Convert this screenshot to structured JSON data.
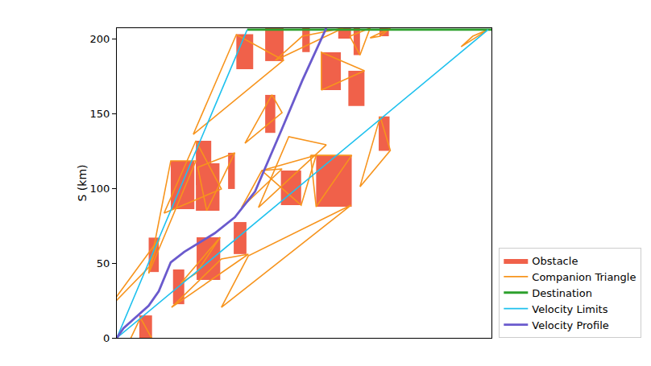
{
  "chart_data": {
    "type": "line",
    "y_label": "S (km)",
    "xlim": [
      0,
      100
    ],
    "ylim": [
      0,
      207
    ],
    "yticks": [
      0,
      50,
      100,
      150,
      200
    ],
    "tick_labels": "y",
    "grid": false,
    "legend": "lower right",
    "series": [
      {
        "name": "Obstacle",
        "type": "rect",
        "color": "#f0614a",
        "rects": [
          [
            6.0,
            9.4,
            -1,
            15
          ],
          [
            8.5,
            11.2,
            44,
            67
          ],
          [
            15.0,
            18.0,
            22.5,
            45.7
          ],
          [
            21.3,
            27.6,
            38.7,
            67.2
          ],
          [
            31.2,
            34.6,
            56,
            77.4
          ],
          [
            14.4,
            20.7,
            86,
            118.3
          ],
          [
            21.1,
            25.2,
            102,
            131.7
          ],
          [
            21.1,
            27.4,
            85,
            116.7
          ],
          [
            29.7,
            31.5,
            99.5,
            123.7
          ],
          [
            31.9,
            36.4,
            179.6,
            203
          ],
          [
            39.6,
            42.3,
            137,
            162.4
          ],
          [
            39.6,
            44.5,
            185,
            207
          ],
          [
            49.5,
            51.5,
            191,
            207
          ],
          [
            43.8,
            49.2,
            88.7,
            111.8
          ],
          [
            53.2,
            62.7,
            87.6,
            122
          ],
          [
            54.6,
            59.8,
            165.6,
            190.9
          ],
          [
            61.8,
            66.1,
            155,
            178.5
          ],
          [
            59.1,
            62.5,
            200,
            207
          ],
          [
            63.2,
            64.9,
            189,
            207
          ],
          [
            70.1,
            72.6,
            201.6,
            207
          ],
          [
            69.9,
            72.8,
            125,
            148
          ]
        ]
      },
      {
        "name": "Companion Triangle",
        "type": "triangle",
        "color": "#f7941d",
        "triangles": [
          [
            [
              0.5,
              -17.2
            ],
            [
              6.3,
              13.4
            ],
            [
              9.5,
              -1.1
            ]
          ],
          [
            [
              -3.1,
              17.2
            ],
            [
              11.4,
              66.7
            ],
            [
              9.0,
              48.4
            ]
          ],
          [
            [
              8.5,
              43
            ],
            [
              14.4,
              118.3
            ],
            [
              21.1,
              118.3
            ]
          ],
          [
            [
              12.6,
              83.3
            ],
            [
              21.1,
              131.7
            ],
            [
              27.9,
              99.5
            ]
          ],
          [
            [
              14.6,
              20.4
            ],
            [
              27.9,
              52.7
            ],
            [
              35.1,
              55.9
            ]
          ],
          [
            [
              27.9,
              20.4
            ],
            [
              35.1,
              54.8
            ],
            [
              62.5,
              88.7
            ]
          ],
          [
            [
              17.1,
              36.6
            ],
            [
              27.6,
              67.2
            ],
            [
              21.1,
              43
            ]
          ],
          [
            [
              20.4,
              136
            ],
            [
              31.9,
              202.7
            ],
            [
              44.5,
              185.5
            ]
          ],
          [
            [
              21.6,
              114
            ],
            [
              31.5,
              123.7
            ],
            [
              24,
              85
            ]
          ],
          [
            [
              38.7,
              111.8
            ],
            [
              53.2,
              122
            ],
            [
              49.2,
              88.7
            ]
          ],
          [
            [
              33.3,
              87.1
            ],
            [
              44.1,
              112.9
            ],
            [
              38.7,
              111.8
            ]
          ],
          [
            [
              37.8,
              87.1
            ],
            [
              55.9,
              129
            ],
            [
              45.9,
              134.4
            ]
          ],
          [
            [
              51.7,
              122
            ],
            [
              62.7,
              122
            ],
            [
              53.2,
              87.6
            ]
          ],
          [
            [
              64.9,
              101
            ],
            [
              70.3,
              147.8
            ],
            [
              73,
              125.3
            ]
          ],
          [
            [
              42.3,
              185.5
            ],
            [
              49.5,
              201.6
            ],
            [
              60.4,
              207
            ]
          ],
          [
            [
              54.6,
              165.6
            ],
            [
              66.1,
              178.5
            ],
            [
              54.6,
              190.9
            ]
          ],
          [
            [
              62.2,
              201.6
            ],
            [
              67.6,
              207
            ],
            [
              64.9,
              189
            ]
          ],
          [
            [
              91.9,
              194.6
            ],
            [
              99.1,
              206
            ],
            [
              95,
              201.6
            ]
          ],
          [
            [
              67.6,
              200.5
            ],
            [
              73,
              207
            ],
            [
              70.3,
              201.6
            ]
          ],
          [
            [
              34.2,
              130.1
            ],
            [
              41.4,
              162.4
            ],
            [
              44.1,
              150.5
            ]
          ]
        ]
      },
      {
        "name": "Destination",
        "type": "line",
        "color": "#2ca02c",
        "x": [
          34.8,
          100
        ],
        "values": [
          206,
          206
        ]
      },
      {
        "name": "Velocity Limits",
        "type": "line",
        "color": "#1fc1ee",
        "x": [
          34.8,
          0,
          99.1
        ],
        "values": [
          206,
          0,
          206
        ]
      },
      {
        "name": "Velocity Profile",
        "type": "line",
        "color": "#6a5acd",
        "x": [
          0,
          1.8,
          5.4,
          8.5,
          11.2,
          14.4,
          18.0,
          26.1,
          31.5,
          36.9,
          44.1,
          49.5,
          55.9
        ],
        "values": [
          0,
          6.5,
          14.5,
          21.5,
          31.2,
          50.5,
          57.5,
          69.9,
          80.6,
          97.8,
          139.8,
          172,
          207
        ]
      }
    ]
  }
}
